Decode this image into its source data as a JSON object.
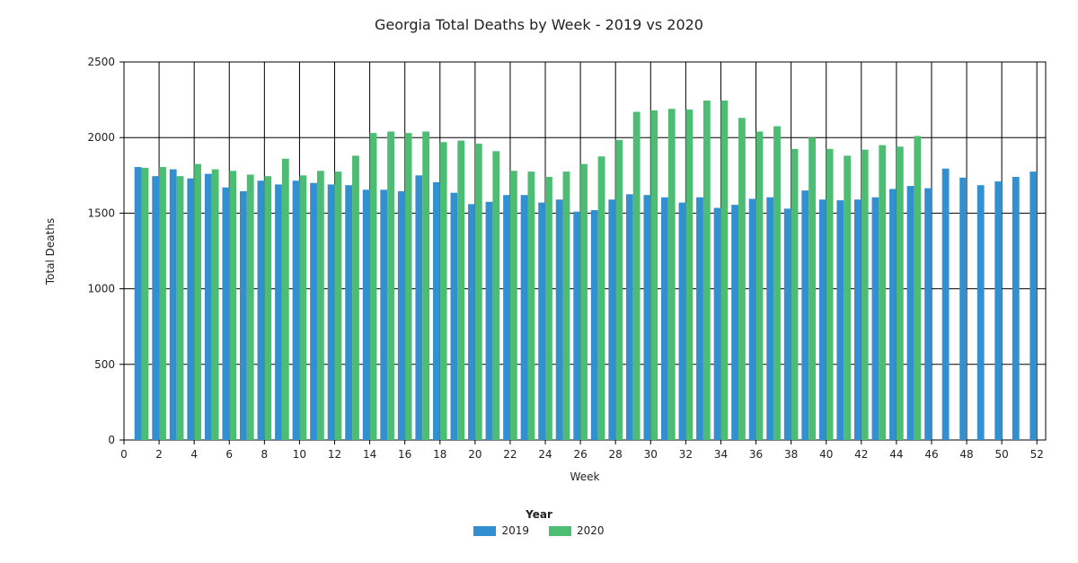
{
  "chart_data": {
    "type": "bar",
    "title": "Georgia Total Deaths by Week - 2019 vs 2020",
    "xlabel": "Week",
    "ylabel": "Total Deaths",
    "xlim": [
      0,
      52.5
    ],
    "ylim": [
      0,
      2500
    ],
    "x_ticks": [
      0,
      2,
      4,
      6,
      8,
      10,
      12,
      14,
      16,
      18,
      20,
      22,
      24,
      26,
      28,
      30,
      32,
      34,
      36,
      38,
      40,
      42,
      44,
      46,
      48,
      50,
      52
    ],
    "y_ticks": [
      0,
      500,
      1000,
      1500,
      2000,
      2500
    ],
    "grid": true,
    "legend_title": "Year",
    "legend_position": "bottom",
    "weeks": [
      1,
      2,
      3,
      4,
      5,
      6,
      7,
      8,
      9,
      10,
      11,
      12,
      13,
      14,
      15,
      16,
      17,
      18,
      19,
      20,
      21,
      22,
      23,
      24,
      25,
      26,
      27,
      28,
      29,
      30,
      31,
      32,
      33,
      34,
      35,
      36,
      37,
      38,
      39,
      40,
      41,
      42,
      43,
      44,
      45,
      46,
      47,
      48,
      49,
      50,
      51,
      52
    ],
    "series": [
      {
        "name": "2019",
        "color": "#3390d0",
        "values": [
          1805,
          1745,
          1790,
          1730,
          1760,
          1670,
          1645,
          1715,
          1690,
          1715,
          1700,
          1690,
          1685,
          1655,
          1655,
          1645,
          1750,
          1705,
          1635,
          1560,
          1575,
          1620,
          1620,
          1570,
          1590,
          1510,
          1520,
          1590,
          1625,
          1620,
          1605,
          1570,
          1605,
          1535,
          1555,
          1595,
          1605,
          1530,
          1650,
          1590,
          1585,
          1590,
          1605,
          1660,
          1680,
          1665,
          1795,
          1735,
          1685,
          1710,
          1740,
          1775
        ]
      },
      {
        "name": "2020",
        "color": "#4dbd74",
        "values": [
          1800,
          1805,
          1745,
          1825,
          1790,
          1780,
          1755,
          1745,
          1860,
          1750,
          1780,
          1775,
          1880,
          2030,
          2040,
          2030,
          2040,
          1970,
          1980,
          1960,
          1910,
          1780,
          1775,
          1740,
          1775,
          1825,
          1875,
          1985,
          2170,
          2180,
          2190,
          2185,
          2245,
          2245,
          2130,
          2040,
          2075,
          1925,
          2000,
          1925,
          1880,
          1920,
          1950,
          1940,
          2010,
          null,
          null,
          null,
          null,
          null,
          null,
          null
        ]
      }
    ]
  }
}
